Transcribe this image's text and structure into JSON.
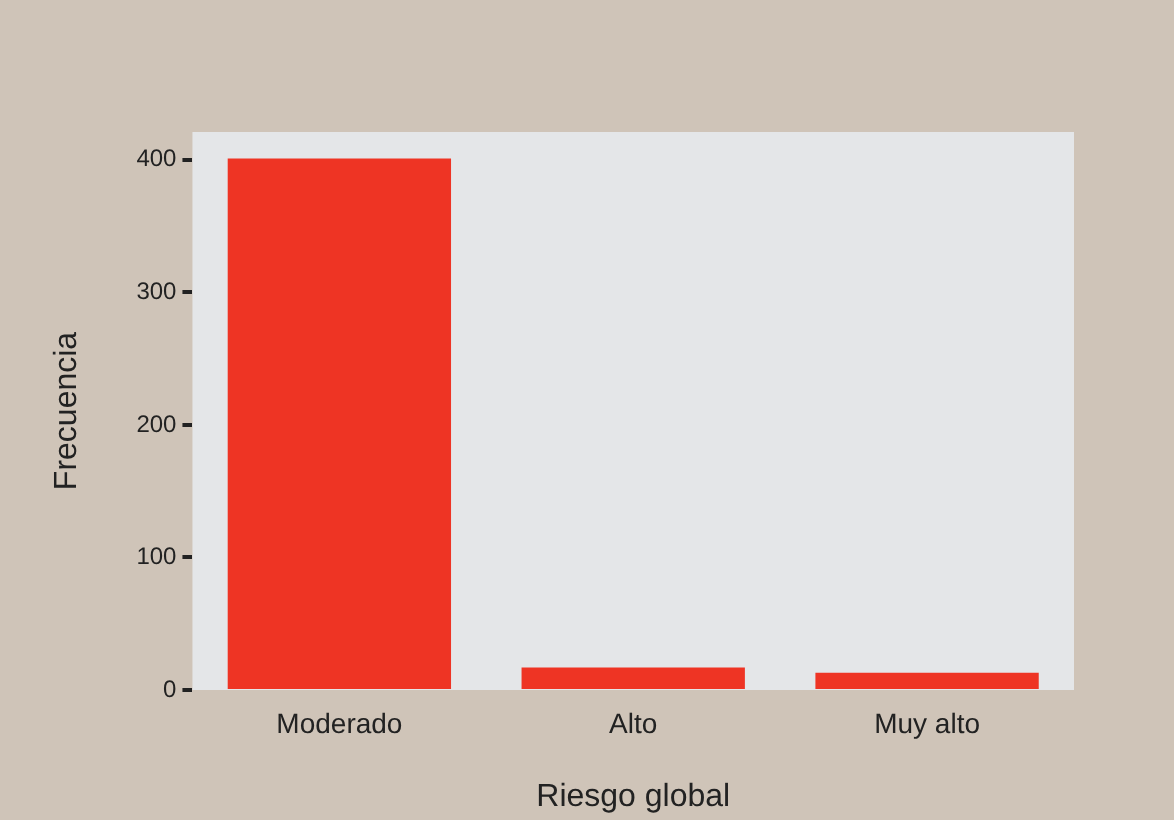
{
  "chart_data": {
    "type": "bar",
    "xlabel": "Riesgo global",
    "ylabel": "Frecuencia",
    "categories": [
      "Moderado",
      "Alto",
      "Muy alto"
    ],
    "values": [
      401,
      17,
      13
    ],
    "color": "#ee3424",
    "ylim": [
      0,
      421
    ],
    "yticks": [
      0,
      100,
      200,
      300,
      400
    ],
    "grid": false,
    "legend": false
  }
}
